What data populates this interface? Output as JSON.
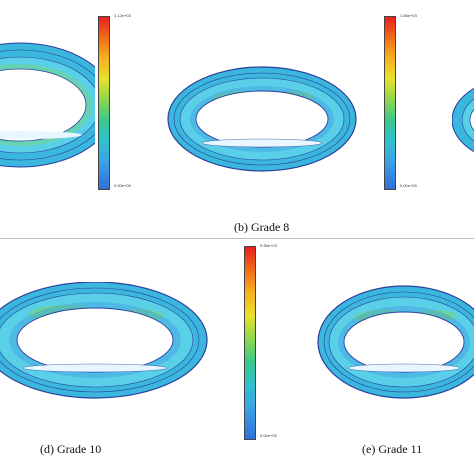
{
  "captions": {
    "b": "(b)  Grade 8",
    "d": "(d)  Grade 10",
    "e": "(e)  Grade 11"
  },
  "colorbars": {
    "b": {
      "top_label": "1.12e+03",
      "bottom_label": "0.00e+00"
    },
    "c": {
      "top_label": "1.56e+03",
      "bottom_label": "0.00e+00"
    },
    "e": {
      "top_label": "9.35e+03",
      "bottom_label": "0.00e+00"
    }
  },
  "colors": {
    "contour_lines": "#2a3f9e",
    "fill_cyan": "#40c8e0",
    "fill_blue": "#3a8ee0",
    "fill_green": "#7fd84a",
    "highlight": "#e8f7ff"
  }
}
